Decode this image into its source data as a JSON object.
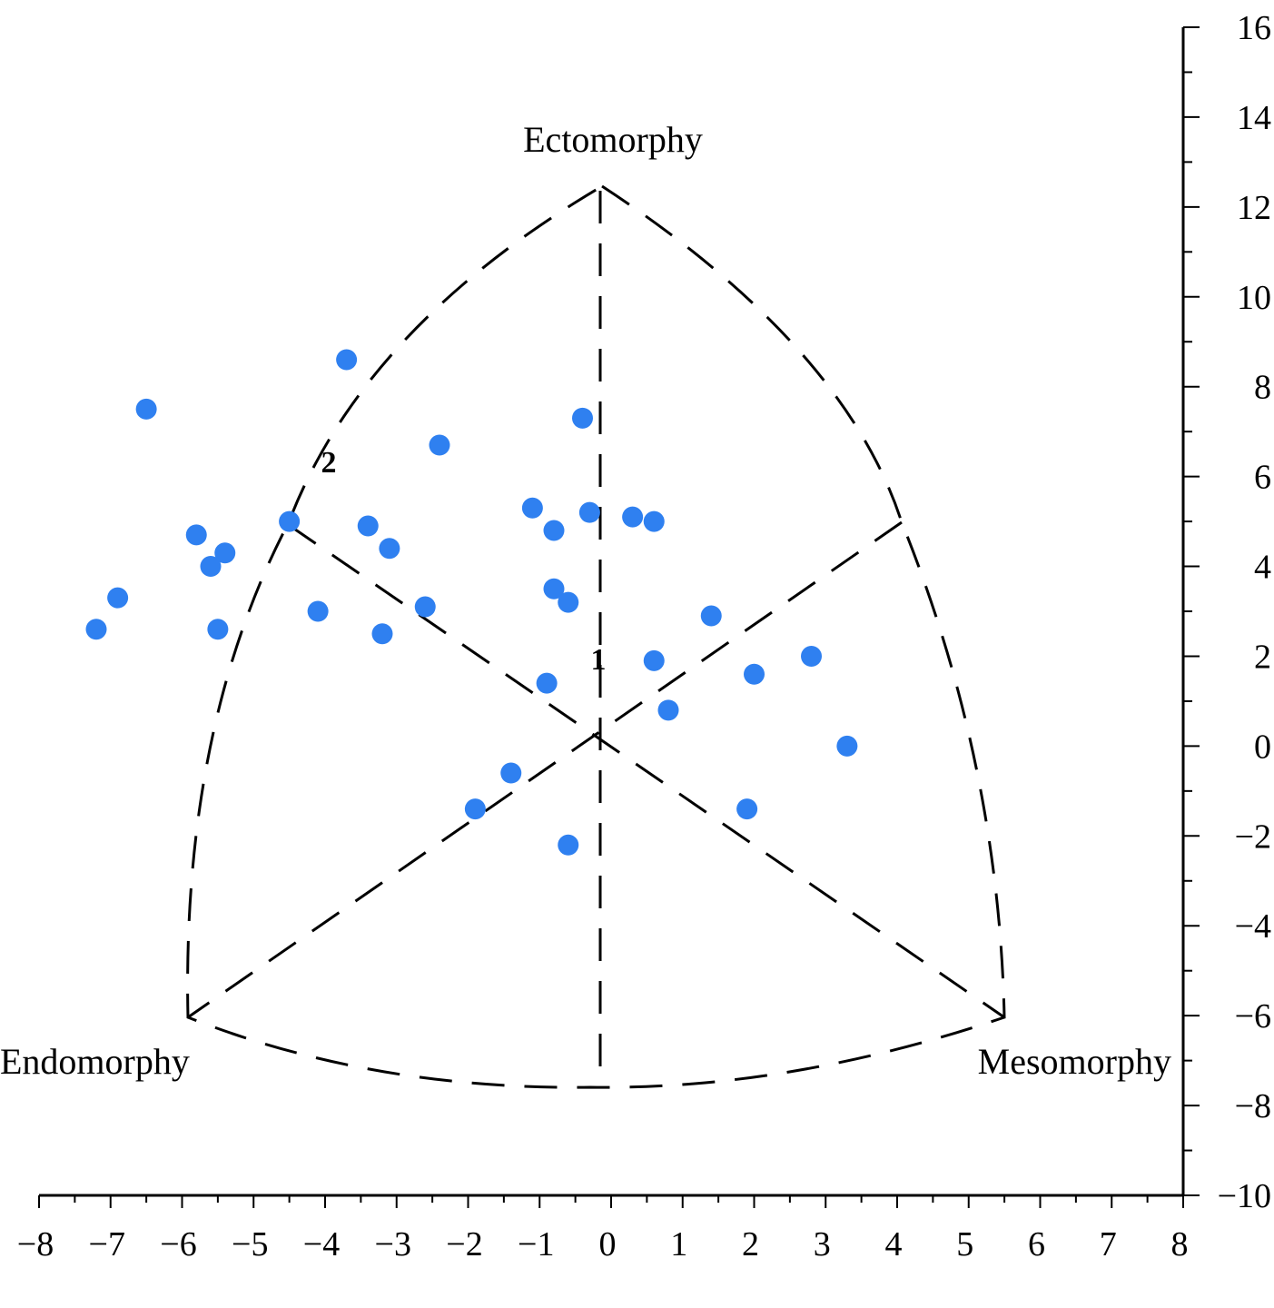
{
  "chart_data": {
    "type": "scatter",
    "title": "",
    "xlabel": "",
    "ylabel": "",
    "xlim": [
      -8,
      8
    ],
    "ylim": [
      -10,
      16
    ],
    "x_ticks": [
      -8,
      -7,
      -6,
      -5,
      -4,
      -3,
      -2,
      -1,
      0,
      1,
      2,
      3,
      4,
      5,
      6,
      7,
      8
    ],
    "y_ticks": [
      -10,
      -8,
      -6,
      -4,
      -2,
      0,
      2,
      4,
      6,
      8,
      10,
      12,
      14,
      16
    ],
    "vertex_labels": {
      "top": "Ectomorphy",
      "left": "Endomorphy",
      "right": "Mesomorphy"
    },
    "annotations": [
      "1",
      "2"
    ],
    "point_color": "#2f80f0",
    "series": [
      {
        "points": [
          [
            -6.5,
            7.5
          ],
          [
            -3.7,
            8.6
          ],
          [
            -0.4,
            7.3
          ],
          [
            -2.4,
            6.7
          ],
          [
            -1.1,
            5.3
          ],
          [
            -0.8,
            4.8
          ],
          [
            -0.3,
            5.2
          ],
          [
            0.3,
            5.1
          ],
          [
            0.6,
            5.0
          ],
          [
            -4.5,
            5.0
          ],
          [
            -3.4,
            4.9
          ],
          [
            -3.1,
            4.4
          ],
          [
            -5.8,
            4.7
          ],
          [
            -5.4,
            4.3
          ],
          [
            -5.6,
            4.0
          ],
          [
            -6.9,
            3.3
          ],
          [
            -7.2,
            2.6
          ],
          [
            -5.5,
            2.6
          ],
          [
            -4.1,
            3.0
          ],
          [
            -3.2,
            2.5
          ],
          [
            -2.6,
            3.1
          ],
          [
            -0.8,
            3.5
          ],
          [
            -0.6,
            3.2
          ],
          [
            1.4,
            2.9
          ],
          [
            0.6,
            1.9
          ],
          [
            -0.9,
            1.4
          ],
          [
            2.0,
            1.6
          ],
          [
            2.8,
            2.0
          ],
          [
            0.8,
            0.8
          ],
          [
            3.3,
            0.0
          ],
          [
            -1.4,
            -0.6
          ],
          [
            -1.9,
            -1.4
          ],
          [
            1.9,
            -1.4
          ],
          [
            -0.6,
            -2.2
          ]
        ]
      }
    ]
  }
}
